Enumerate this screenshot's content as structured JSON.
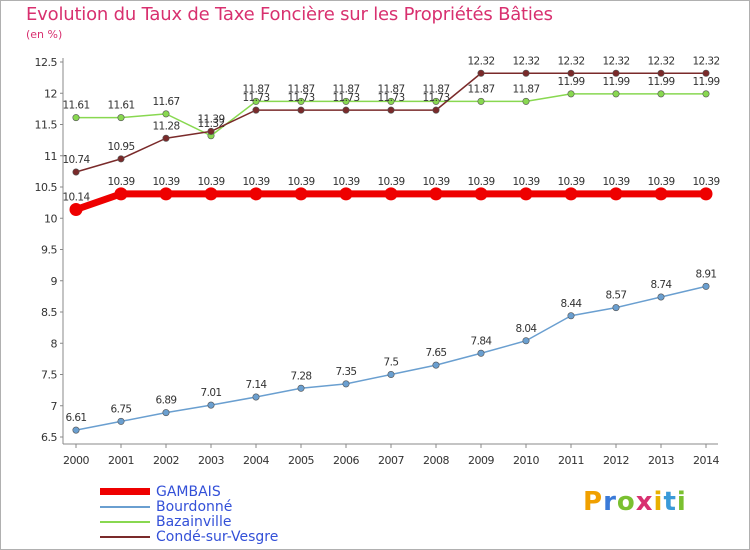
{
  "title": "Evolution du Taux de Taxe Foncière sur les Propriétés Bâties",
  "unit_label": "(en %)",
  "logo": {
    "text": "Proxiti",
    "letters": [
      "P",
      "r",
      "o",
      "x",
      "i",
      "t",
      "i"
    ],
    "colors": [
      "#f0a000",
      "#3a7ad8",
      "#7ac030",
      "#d83070",
      "#e8b000",
      "#3a9ad8",
      "#7ac030"
    ]
  },
  "chart_data": {
    "type": "line",
    "x": [
      "2000",
      "2001",
      "2002",
      "2003",
      "2004",
      "2005",
      "2006",
      "2007",
      "2008",
      "2009",
      "2010",
      "2011",
      "2012",
      "2013",
      "2014"
    ],
    "ylim": [
      6.5,
      12.5
    ],
    "yticks": [
      "6.5",
      "7",
      "7.5",
      "8",
      "8.5",
      "9",
      "9.5",
      "10",
      "10.5",
      "11",
      "11.5",
      "12",
      "12.5"
    ],
    "grid": false,
    "legend_position": "bottom-left",
    "series": [
      {
        "name": "GAMBAIS",
        "color": "#ee0000",
        "values": [
          10.14,
          10.39,
          10.39,
          10.39,
          10.39,
          10.39,
          10.39,
          10.39,
          10.39,
          10.39,
          10.39,
          10.39,
          10.39,
          10.39,
          10.39
        ],
        "labels": [
          "10.14",
          "10.39",
          "10.39",
          "10.39",
          "10.39",
          "10.39",
          "10.39",
          "10.39",
          "10.39",
          "10.39",
          "10.39",
          "10.39",
          "10.39",
          "10.39",
          "10.39"
        ]
      },
      {
        "name": "Bourdonné",
        "color": "#6a9fd0",
        "values": [
          6.61,
          6.75,
          6.89,
          7.01,
          7.14,
          7.28,
          7.35,
          7.5,
          7.65,
          7.84,
          8.04,
          8.44,
          8.57,
          8.74,
          8.91
        ],
        "labels": [
          "6.61",
          "6.75",
          "6.89",
          "7.01",
          "7.14",
          "7.28",
          "7.35",
          "7.5",
          "7.65",
          "7.84",
          "8.04",
          "8.44",
          "8.57",
          "8.74",
          "8.91"
        ]
      },
      {
        "name": "Bazainville",
        "color": "#88d850",
        "values": [
          11.61,
          11.61,
          11.67,
          11.32,
          11.87,
          11.87,
          11.87,
          11.87,
          11.87,
          11.87,
          11.87,
          11.99,
          11.99,
          11.99,
          11.99
        ],
        "labels": [
          "11.61",
          "11.61",
          "11.67",
          "11.32",
          "11.87",
          "11.87",
          "11.87",
          "11.87",
          "11.87",
          "11.87",
          "11.87",
          "11.99",
          "11.99",
          "11.99",
          "11.99"
        ]
      },
      {
        "name": "Condé-sur-Vesgre",
        "color": "#7a2a2a",
        "values": [
          10.74,
          10.95,
          11.28,
          11.39,
          11.73,
          11.73,
          11.73,
          11.73,
          11.73,
          12.32,
          12.32,
          12.32,
          12.32,
          12.32,
          12.32
        ],
        "labels": [
          "10.74",
          "10.95",
          "11.28",
          "11.39",
          "11.73",
          "11.73",
          "11.73",
          "11.73",
          "11.73",
          "12.32",
          "12.32",
          "12.32",
          "12.32",
          "12.32",
          "12.32"
        ]
      }
    ]
  }
}
